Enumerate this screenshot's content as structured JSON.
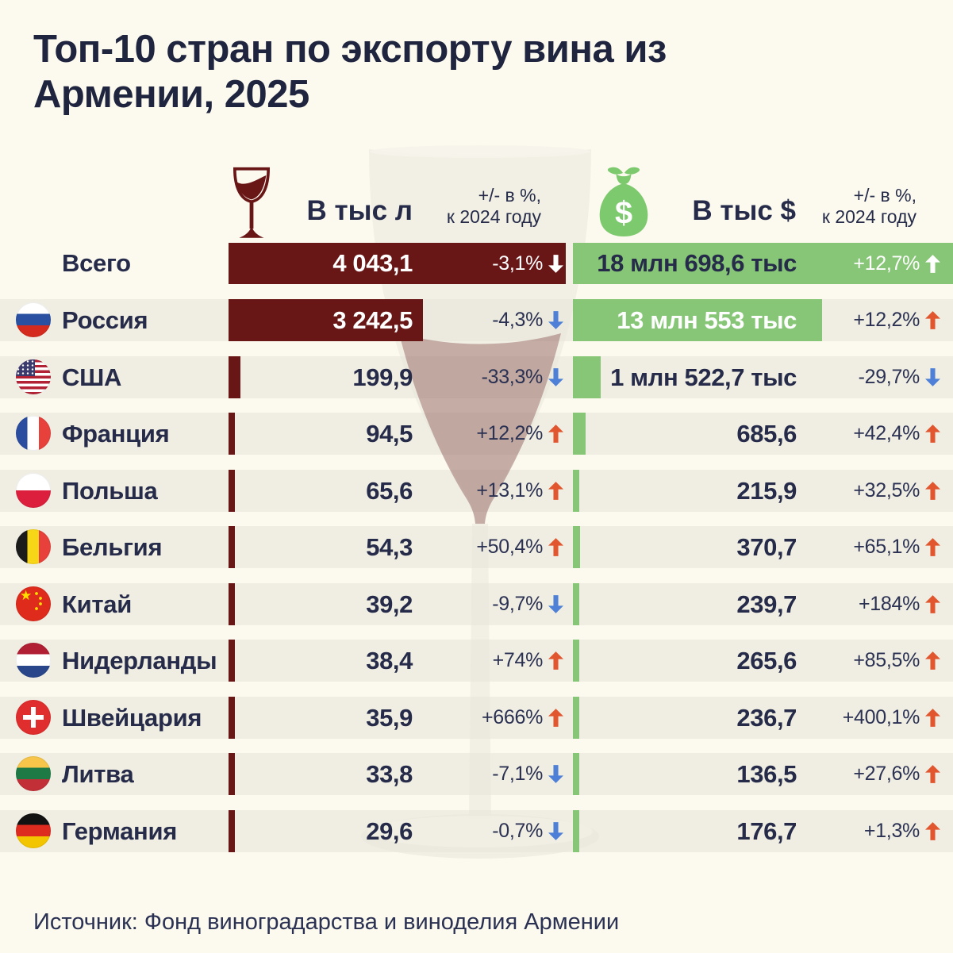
{
  "title_line1": "Топ-10 стран по экспорту вина из",
  "title_line2": "Армении, 2025",
  "header": {
    "volume_label": "В тыс л",
    "volume_change_line1": "+/- в %,",
    "volume_change_line2": "к 2024 году",
    "dollar_label": "В тыс $",
    "dollar_change_line1": "+/- в %,",
    "dollar_change_line2": "к 2024 году"
  },
  "icons": {
    "volume_column": "wine-glass-icon",
    "dollar_column": "money-bag-icon"
  },
  "colors": {
    "background": "#fcfaef",
    "row_strip": "#f0eee3",
    "bar_red": "#681616",
    "bar_green": "#87c677",
    "arrow_up_orange": "#e2562f",
    "arrow_down_blue": "#4d80d6",
    "text_navy": "#252b49"
  },
  "rows": [
    {
      "label": "Всего",
      "flag": null,
      "total": true,
      "volume": 4043.1,
      "volume_display": "4 043,1",
      "volume_change": "-3,1%",
      "volume_dir": "down",
      "volume_value_white": true,
      "dollar": 18698.6,
      "dollar_display": "18 млн 698,6 тыс",
      "dollar_change": "+12,7%",
      "dollar_dir": "up",
      "dollar_value_white": false,
      "pct_inside": true
    },
    {
      "label": "Россия",
      "flag": "ru",
      "total": false,
      "volume": 3242.5,
      "volume_display": "3 242,5",
      "volume_change": "-4,3%",
      "volume_dir": "down",
      "volume_value_white": true,
      "dollar": 13553,
      "dollar_display": "13 млн 553 тыс",
      "dollar_change": "+12,2%",
      "dollar_dir": "up",
      "dollar_value_white": true,
      "pct_inside": false
    },
    {
      "label": "США",
      "flag": "us",
      "total": false,
      "volume": 199.9,
      "volume_display": "199,9",
      "volume_change": "-33,3%",
      "volume_dir": "down",
      "volume_value_white": false,
      "dollar": 1522.7,
      "dollar_display": "1 млн 522,7 тыс",
      "dollar_change": "-29,7%",
      "dollar_dir": "down",
      "dollar_value_white": false,
      "pct_inside": false
    },
    {
      "label": "Франция",
      "flag": "fr",
      "total": false,
      "volume": 94.5,
      "volume_display": "94,5",
      "volume_change": "+12,2%",
      "volume_dir": "up",
      "volume_value_white": false,
      "dollar": 685.6,
      "dollar_display": "685,6",
      "dollar_change": "+42,4%",
      "dollar_dir": "up",
      "dollar_value_white": false,
      "pct_inside": false
    },
    {
      "label": "Польша",
      "flag": "pl",
      "total": false,
      "volume": 65.6,
      "volume_display": "65,6",
      "volume_change": "+13,1%",
      "volume_dir": "up",
      "volume_value_white": false,
      "dollar": 215.9,
      "dollar_display": "215,9",
      "dollar_change": "+32,5%",
      "dollar_dir": "up",
      "dollar_value_white": false,
      "pct_inside": false
    },
    {
      "label": "Бельгия",
      "flag": "be",
      "total": false,
      "volume": 54.3,
      "volume_display": "54,3",
      "volume_change": "+50,4%",
      "volume_dir": "up",
      "volume_value_white": false,
      "dollar": 370.7,
      "dollar_display": "370,7",
      "dollar_change": "+65,1%",
      "dollar_dir": "up",
      "dollar_value_white": false,
      "pct_inside": false
    },
    {
      "label": "Китай",
      "flag": "cn",
      "total": false,
      "volume": 39.2,
      "volume_display": "39,2",
      "volume_change": "-9,7%",
      "volume_dir": "down",
      "volume_value_white": false,
      "dollar": 239.7,
      "dollar_display": "239,7",
      "dollar_change": "+184%",
      "dollar_dir": "up",
      "dollar_value_white": false,
      "pct_inside": false
    },
    {
      "label": "Нидерланды",
      "flag": "nl",
      "total": false,
      "volume": 38.4,
      "volume_display": "38,4",
      "volume_change": "+74%",
      "volume_dir": "up",
      "volume_value_white": false,
      "dollar": 265.6,
      "dollar_display": "265,6",
      "dollar_change": "+85,5%",
      "dollar_dir": "up",
      "dollar_value_white": false,
      "pct_inside": false
    },
    {
      "label": "Швейцария",
      "flag": "ch",
      "total": false,
      "volume": 35.9,
      "volume_display": "35,9",
      "volume_change": "+666%",
      "volume_dir": "up",
      "volume_value_white": false,
      "dollar": 236.7,
      "dollar_display": "236,7",
      "dollar_change": "+400,1%",
      "dollar_dir": "up",
      "dollar_value_white": false,
      "pct_inside": false
    },
    {
      "label": "Литва",
      "flag": "lt",
      "total": false,
      "volume": 33.8,
      "volume_display": "33,8",
      "volume_change": "-7,1%",
      "volume_dir": "down",
      "volume_value_white": false,
      "dollar": 136.5,
      "dollar_display": "136,5",
      "dollar_change": "+27,6%",
      "dollar_dir": "up",
      "dollar_value_white": false,
      "pct_inside": false
    },
    {
      "label": "Германия",
      "flag": "de",
      "total": false,
      "volume": 29.6,
      "volume_display": "29,6",
      "volume_change": "-0,7%",
      "volume_dir": "down",
      "volume_value_white": false,
      "dollar": 176.7,
      "dollar_display": "176,7",
      "dollar_change": "+1,3%",
      "dollar_dir": "up",
      "dollar_value_white": false,
      "pct_inside": false
    }
  ],
  "source": "Источник: Фонд виноградарства и виноделия Армении",
  "chart_data": {
    "type": "bar",
    "title": "Топ-10 стран по экспорту вина из Армении, 2025",
    "categories": [
      "Всего",
      "Россия",
      "США",
      "Франция",
      "Польша",
      "Бельгия",
      "Китай",
      "Нидерланды",
      "Швейцария",
      "Литва",
      "Германия"
    ],
    "series": [
      {
        "name": "В тыс л",
        "values": [
          4043.1,
          3242.5,
          199.9,
          94.5,
          65.6,
          54.3,
          39.2,
          38.4,
          35.9,
          33.8,
          29.6
        ]
      },
      {
        "name": "+/- в %, к 2024 году (объём)",
        "values": [
          -3.1,
          -4.3,
          -33.3,
          12.2,
          13.1,
          50.4,
          -9.7,
          74,
          666,
          -7.1,
          -0.7
        ]
      },
      {
        "name": "В тыс $",
        "values": [
          18698.6,
          13553,
          1522.7,
          685.6,
          215.9,
          370.7,
          239.7,
          265.6,
          236.7,
          136.5,
          176.7
        ]
      },
      {
        "name": "+/- в %, к 2024 году ($)",
        "values": [
          12.7,
          12.2,
          -29.7,
          42.4,
          32.5,
          65.1,
          184,
          85.5,
          400.1,
          27.6,
          1.3
        ]
      }
    ],
    "orientation": "horizontal",
    "legend": false,
    "grid": false,
    "source": "Источник: Фонд виноградарства и виноделия Армении"
  }
}
